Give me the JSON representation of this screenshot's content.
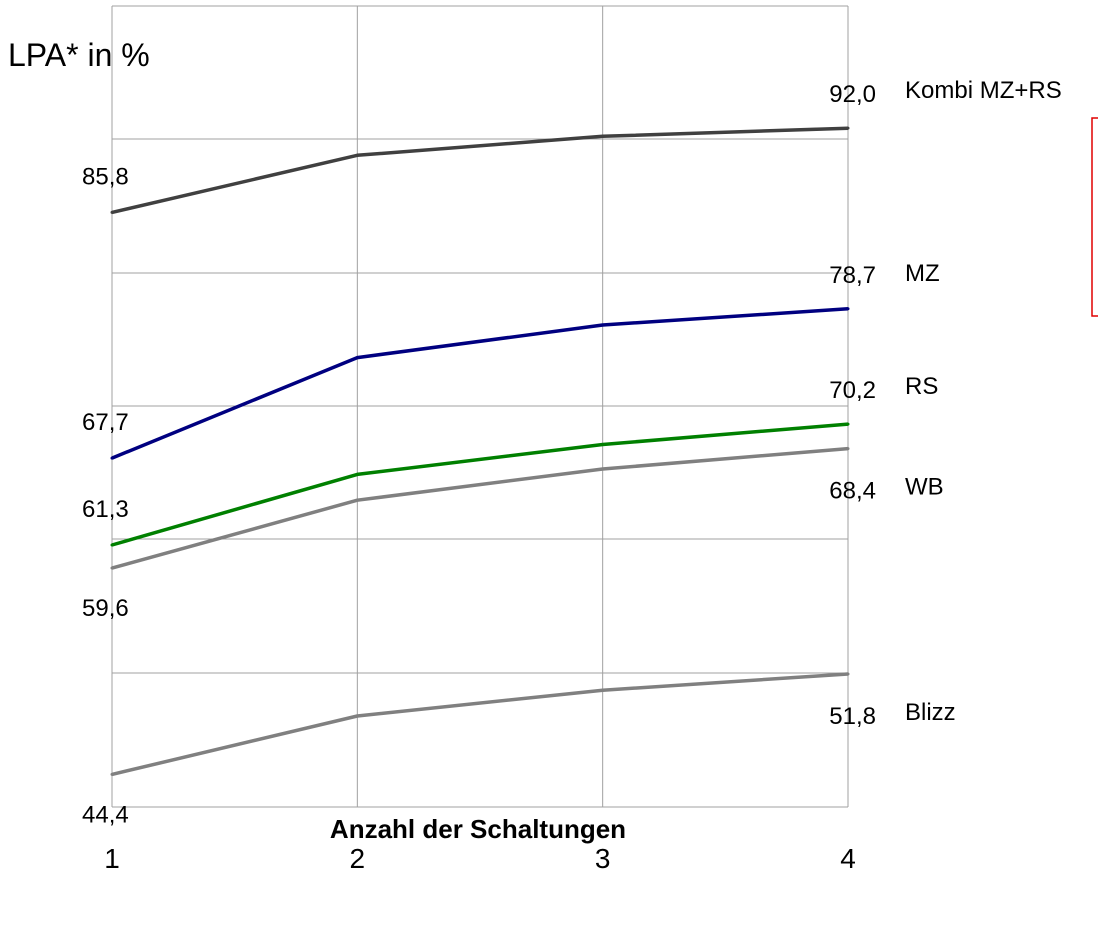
{
  "chart_data": {
    "type": "line",
    "ylabel": "LPA* in %",
    "xlabel": "Anzahl der Schaltungen",
    "x": [
      1,
      2,
      3,
      4
    ],
    "x_tick_labels": [
      "1",
      "2",
      "3",
      "4"
    ],
    "ylim": [
      42,
      101
    ],
    "grid": true,
    "series": [
      {
        "name": "Kombi MZ+RS",
        "color": "#404040",
        "values": [
          85.8,
          90.0,
          91.4,
          92.0
        ],
        "start_label": "85,8",
        "end_label": "92,0"
      },
      {
        "name": "MZ",
        "color": "#000080",
        "values": [
          67.7,
          75.1,
          77.5,
          78.7
        ],
        "start_label": "67,7",
        "end_label": "78,7"
      },
      {
        "name": "RS",
        "color": "#008000",
        "values": [
          61.3,
          66.5,
          68.7,
          70.2
        ],
        "start_label": "61,3",
        "end_label": "70,2"
      },
      {
        "name": "WB",
        "color": "#808080",
        "values": [
          59.6,
          64.6,
          66.9,
          68.4
        ],
        "start_label": "59,6",
        "end_label": "68,4"
      },
      {
        "name": "Blizz",
        "color": "#808080",
        "values": [
          44.4,
          48.7,
          50.6,
          51.8
        ],
        "start_label": "44,4",
        "end_label": "51,8"
      }
    ]
  },
  "legend_box_color": "#e00000"
}
